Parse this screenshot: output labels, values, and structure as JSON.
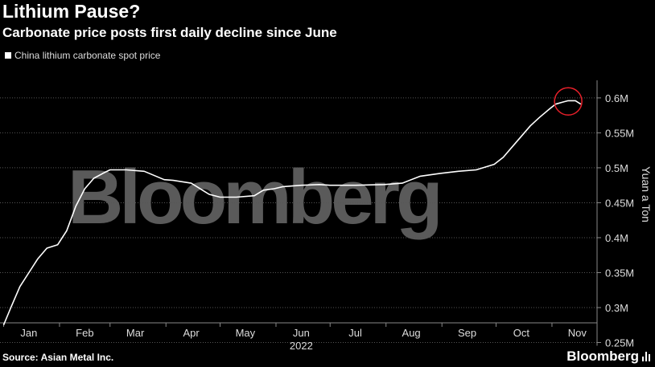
{
  "header": {
    "title": "Lithium Pause?",
    "subtitle": "Carbonate price posts first daily decline since June"
  },
  "footer": {
    "source": "Source: Asian Metal Inc.",
    "brand": "Bloomberg"
  },
  "watermark": "Bloomberg",
  "colors": {
    "background": "#000000",
    "line": "#ffffff",
    "highlight_circle": "#e8202a",
    "grid": "#555555"
  },
  "chart_data": {
    "type": "line",
    "title": "Lithium Pause?",
    "subtitle": "Carbonate price posts first daily decline since June",
    "ylabel": "Yuan a Ton",
    "xlabel": "2022",
    "ylim": [
      250000,
      620000
    ],
    "y_axis_position": "right",
    "grid": "horizontal",
    "legend": "top-left",
    "y_ticks": [
      {
        "value": 250000,
        "label": "0.25M"
      },
      {
        "value": 300000,
        "label": "0.3M"
      },
      {
        "value": 350000,
        "label": "0.35M"
      },
      {
        "value": 400000,
        "label": "0.4M"
      },
      {
        "value": 450000,
        "label": "0.45M"
      },
      {
        "value": 500000,
        "label": "0.5M"
      },
      {
        "value": 550000,
        "label": "0.55M"
      },
      {
        "value": 600000,
        "label": "0.6M"
      }
    ],
    "x_ticks": [
      "Jan",
      "Feb",
      "Mar",
      "Apr",
      "May",
      "Jun",
      "Jul",
      "Aug",
      "Sep",
      "Oct",
      "Nov"
    ],
    "series": [
      {
        "name": "China lithium carbonate spot price",
        "x": [
          "2022-01-01",
          "2022-01-05",
          "2022-01-10",
          "2022-01-15",
          "2022-01-20",
          "2022-01-25",
          "2022-01-31",
          "2022-02-05",
          "2022-02-10",
          "2022-02-15",
          "2022-02-20",
          "2022-02-25",
          "2022-03-01",
          "2022-03-10",
          "2022-03-20",
          "2022-03-31",
          "2022-04-05",
          "2022-04-15",
          "2022-04-25",
          "2022-05-01",
          "2022-05-10",
          "2022-05-20",
          "2022-05-25",
          "2022-05-31",
          "2022-06-05",
          "2022-06-15",
          "2022-06-25",
          "2022-07-01",
          "2022-07-15",
          "2022-07-31",
          "2022-08-10",
          "2022-08-20",
          "2022-08-31",
          "2022-09-10",
          "2022-09-20",
          "2022-09-30",
          "2022-10-05",
          "2022-10-10",
          "2022-10-15",
          "2022-10-20",
          "2022-10-25",
          "2022-10-31",
          "2022-11-03",
          "2022-11-07",
          "2022-11-10",
          "2022-11-14",
          "2022-11-17"
        ],
        "values": [
          275000,
          300000,
          330000,
          350000,
          370000,
          385000,
          390000,
          410000,
          445000,
          470000,
          485000,
          492000,
          497000,
          497000,
          495000,
          483000,
          482000,
          478000,
          462000,
          458000,
          458000,
          460000,
          468000,
          470000,
          473000,
          475000,
          476000,
          475000,
          475000,
          476000,
          478000,
          488000,
          492000,
          495000,
          497000,
          505000,
          515000,
          530000,
          545000,
          560000,
          572000,
          585000,
          591000,
          594000,
          596000,
          596000,
          591000
        ]
      }
    ],
    "annotations": [
      {
        "type": "circle",
        "x": "2022-11-10",
        "y": 595000,
        "color": "#e8202a",
        "note": "first daily decline"
      }
    ]
  }
}
